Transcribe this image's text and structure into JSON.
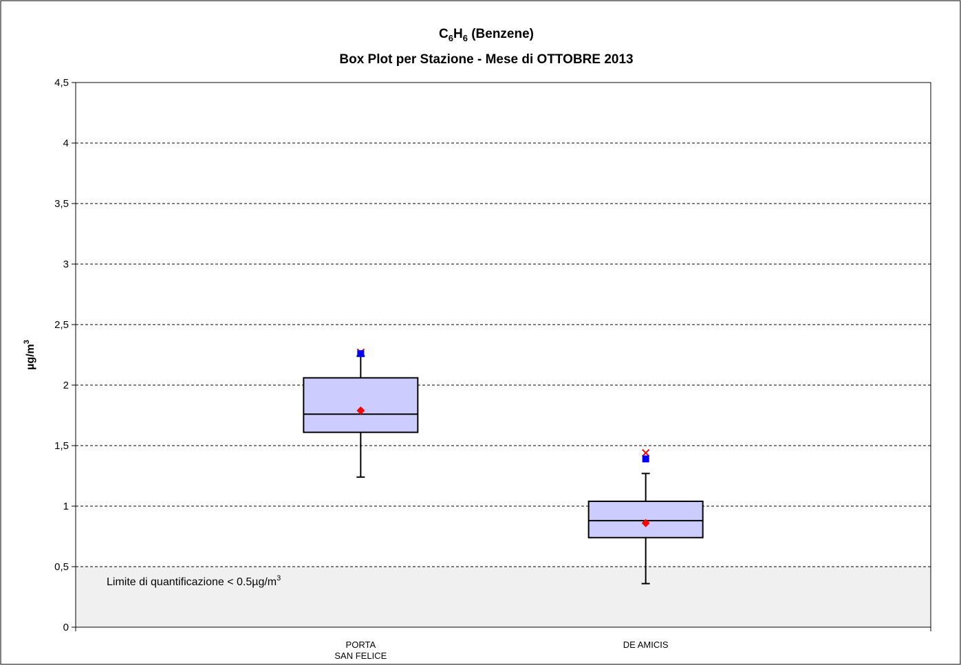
{
  "chart_data": {
    "type": "box",
    "title": {
      "lines": [
        [
          "C",
          "6",
          "H",
          "6",
          " (Benzene)"
        ],
        [
          "Box Plot per Stazione - Mese di OTTOBRE 2013"
        ]
      ]
    },
    "y_label": [
      "µg/m",
      "3"
    ],
    "annotation": [
      "Limite di quantificazione < 0.5µg/m",
      "3"
    ],
    "shade_limit": 0.5,
    "categories": [
      [
        "PORTA",
        "SAN FELICE"
      ],
      [
        "DE AMICIS"
      ]
    ],
    "boxes": [
      {
        "whisker_low": 1.24,
        "q1": 1.61,
        "median": 1.76,
        "q3": 2.06,
        "whisker_high": 2.24,
        "mean": 1.79,
        "square": 2.26,
        "cross": 2.27
      },
      {
        "whisker_low": 0.36,
        "q1": 0.74,
        "median": 0.88,
        "q3": 1.04,
        "whisker_high": 1.27,
        "mean": 0.86,
        "square": 1.39,
        "cross": 1.44
      }
    ],
    "box_color": "#ccccff",
    "mean_color": "#ff0000",
    "square_color": "#0000ff",
    "cross_color": "#ff0000",
    "shade_color": "#f0f0f0",
    "ylim": [
      0,
      4.5
    ],
    "yticks": [
      0,
      {
        "value": 0.5,
        "label": "0,5"
      },
      1,
      {
        "value": 1.5,
        "label": "1,5"
      },
      2,
      {
        "value": 2.5,
        "label": "2,5"
      },
      3,
      {
        "value": 3.5,
        "label": "3,5"
      },
      4,
      {
        "value": 4.5,
        "label": "4,5"
      }
    ],
    "grid": true
  }
}
